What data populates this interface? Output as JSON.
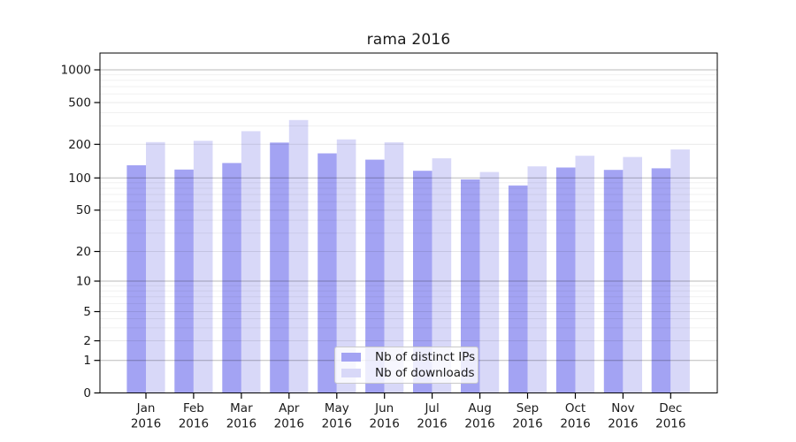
{
  "title": "rama 2016",
  "chart_data": {
    "type": "bar",
    "title": "rama 2016",
    "categories": [
      "Jan",
      "Feb",
      "Mar",
      "Apr",
      "May",
      "Jun",
      "Jul",
      "Aug",
      "Sep",
      "Oct",
      "Nov",
      "Dec"
    ],
    "category_year": "2016",
    "series": [
      {
        "name": "Nb of distinct IPs",
        "color": "#a3a3f3",
        "values": [
          130,
          119,
          136,
          208,
          166,
          146,
          116,
          97,
          85,
          124,
          118,
          122
        ]
      },
      {
        "name": "Nb of downloads",
        "color": "#d8d8f8",
        "values": [
          210,
          216,
          267,
          341,
          223,
          209,
          150,
          113,
          127,
          158,
          154,
          180
        ]
      }
    ],
    "xlabel": "",
    "ylabel": "",
    "yscale": "symlog",
    "yticks": [
      0,
      1,
      2,
      5,
      10,
      20,
      50,
      100,
      200,
      500,
      1000
    ],
    "major_yticks": [
      1,
      10,
      100,
      1000
    ],
    "ylim": [
      0,
      1400
    ],
    "grid": true,
    "legend_position": "lower-center"
  }
}
